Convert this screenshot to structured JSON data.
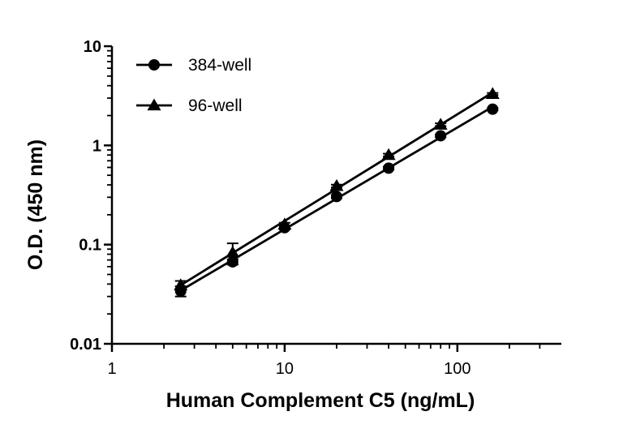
{
  "chart_data": {
    "type": "line",
    "title": "",
    "xlabel": "Human Complement C5 (ng/mL)",
    "ylabel": "O.D. (450 nm)",
    "xscale": "log",
    "yscale": "log",
    "xlim": [
      1,
      400
    ],
    "ylim": [
      0.01,
      10
    ],
    "xticks": [
      {
        "value": 1,
        "label": "1"
      },
      {
        "value": 10,
        "label": "10"
      },
      {
        "value": 100,
        "label": "100"
      }
    ],
    "yticks": [
      {
        "value": 0.01,
        "label": "0.01"
      },
      {
        "value": 0.1,
        "label": "0.1"
      },
      {
        "value": 1,
        "label": "1"
      },
      {
        "value": 10,
        "label": "10"
      }
    ],
    "grid": false,
    "legend_position": "top-left",
    "series": [
      {
        "name": "384-well",
        "marker": "circle",
        "color": "#000000",
        "x": [
          2.5,
          5,
          10,
          20,
          40,
          80,
          160
        ],
        "y": [
          0.034,
          0.067,
          0.148,
          0.305,
          0.59,
          1.25,
          2.32
        ],
        "yerr": [
          0.004,
          0.004,
          0.006,
          0.012,
          0.02,
          0.04,
          0.06
        ]
      },
      {
        "name": "96-well",
        "marker": "triangle",
        "color": "#000000",
        "x": [
          2.5,
          5,
          10,
          20,
          40,
          80,
          160
        ],
        "y": [
          0.039,
          0.083,
          0.16,
          0.39,
          0.8,
          1.62,
          3.3
        ],
        "yerr": [
          0.004,
          0.02,
          0.006,
          0.012,
          0.025,
          0.05,
          0.08
        ]
      }
    ]
  }
}
